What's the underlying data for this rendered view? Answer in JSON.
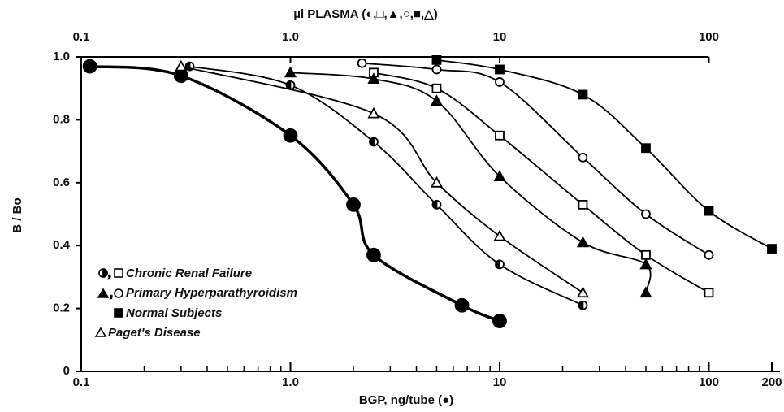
{
  "chart_data": {
    "type": "line",
    "top_axis_title": "µl PLASMA (◐,□,▲,○,■,△)",
    "xlabel": "BGP, ng/tube (●)",
    "ylabel": "B / Bo",
    "xlog": true,
    "xlim": [
      0.1,
      200
    ],
    "ylim": [
      0,
      1.0
    ],
    "xticks": [
      0.1,
      {
        "value": 1,
        "label": "1.0"
      },
      10,
      100,
      200
    ],
    "top_xticks": [
      0.1,
      {
        "value": 1,
        "label": "1.0"
      },
      10,
      100
    ],
    "xminorticks": [
      0.2,
      0.3,
      0.4,
      0.5,
      0.6,
      0.7,
      0.8,
      0.9,
      2,
      3,
      4,
      5,
      6,
      7,
      8,
      9,
      20,
      30,
      40,
      50,
      60,
      70,
      80,
      90
    ],
    "yticks": [
      0,
      0.2,
      0.4,
      0.6,
      0.8,
      {
        "value": 1,
        "label": "1.0"
      }
    ],
    "series": [
      {
        "marker": "filled-circle",
        "color": "#000000",
        "x": [
          0.11,
          0.3,
          1.0,
          2.0,
          2.5,
          6.6,
          10
        ],
        "values": [
          0.97,
          0.94,
          0.75,
          0.53,
          0.37,
          0.21,
          0.16
        ]
      },
      {
        "marker": "half-circle",
        "color": "#000000",
        "x": [
          0.33,
          1.0,
          2.5,
          5,
          10,
          25
        ],
        "values": [
          0.97,
          0.91,
          0.73,
          0.53,
          0.34,
          0.21
        ]
      },
      {
        "marker": "open-square",
        "color": "#000000",
        "x": [
          2.5,
          5,
          10,
          25,
          50,
          100
        ],
        "values": [
          0.95,
          0.9,
          0.75,
          0.53,
          0.37,
          0.25
        ]
      },
      {
        "marker": "filled-triangle",
        "color": "#000000",
        "x": [
          1.0,
          2.5,
          5,
          10,
          25,
          50,
          50
        ],
        "values": [
          0.95,
          0.93,
          0.86,
          0.62,
          0.41,
          0.34,
          0.25
        ]
      },
      {
        "marker": "open-circle",
        "color": "#000000",
        "x": [
          2.2,
          5,
          10,
          25,
          50,
          100
        ],
        "values": [
          0.98,
          0.96,
          0.92,
          0.68,
          0.5,
          0.37
        ]
      },
      {
        "marker": "filled-square",
        "color": "#000000",
        "x": [
          5,
          10,
          25,
          50,
          100,
          200
        ],
        "values": [
          0.99,
          0.96,
          0.88,
          0.71,
          0.51,
          0.39
        ]
      },
      {
        "marker": "open-triangle",
        "color": "#000000",
        "x": [
          0.3,
          2.5,
          5,
          10,
          25
        ],
        "values": [
          0.97,
          0.82,
          0.6,
          0.43,
          0.25
        ]
      }
    ],
    "legend": [
      "Chronic Renal Failure",
      "Primary Hyperparathyroidism",
      "Normal Subjects",
      "Paget's Disease"
    ]
  }
}
